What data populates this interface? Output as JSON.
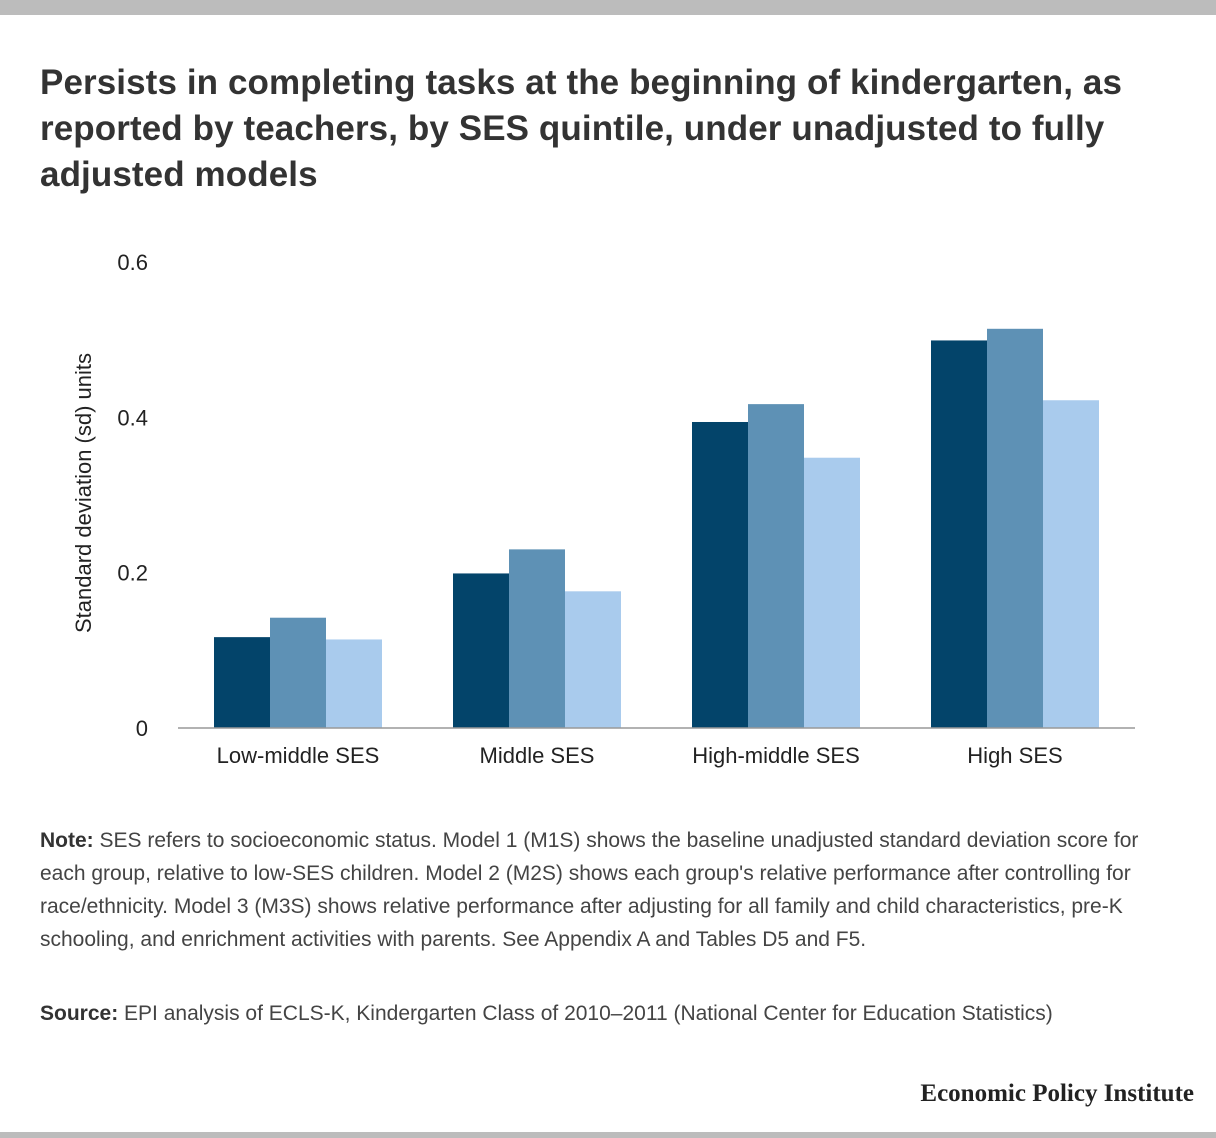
{
  "title": "Persists in completing tasks at the beginning of kindergarten, as reported by teachers, by SES quintile, under unadjusted to fully adjusted models",
  "note": {
    "label": "Note:",
    "text": "SES refers to socioeconomic status. Model 1 (M1S) shows the baseline unadjusted standard deviation score for each group, relative to low-SES children. Model 2 (M2S) shows each group's relative performance after controlling for race/ethnicity. Model 3 (M3S) shows relative performance after adjusting for all family and child characteristics, pre-K schooling, and enrichment activities with parents. See Appendix A and Tables D5 and F5."
  },
  "source": {
    "label": "Source:",
    "text": "EPI analysis of ECLS-K, Kindergarten Class of 2010–2011 (National Center for Education Statistics)"
  },
  "brand": "Economic Policy Institute",
  "colors": {
    "series1": "#03446a",
    "series2": "#5e91b5",
    "series3": "#a9cbed",
    "axis": "#999999",
    "frame": "#bcbcbc"
  },
  "chart_data": {
    "type": "bar",
    "title": "",
    "xlabel": "",
    "ylabel": "Standard deviation (sd) units",
    "ylim": [
      0,
      0.6
    ],
    "yticks": [
      0,
      0.2,
      0.4,
      0.6
    ],
    "ytick_labels": [
      "0",
      "0.2",
      "0.4",
      "0.6"
    ],
    "grid": false,
    "legend": "none",
    "categories": [
      "Low-middle SES",
      "Middle SES",
      "High-middle SES",
      "High SES"
    ],
    "series": [
      {
        "values": [
          0.117,
          0.199,
          0.394,
          0.499
        ]
      },
      {
        "values": [
          0.142,
          0.23,
          0.417,
          0.514
        ]
      },
      {
        "values": [
          0.114,
          0.176,
          0.348,
          0.422
        ]
      }
    ]
  }
}
